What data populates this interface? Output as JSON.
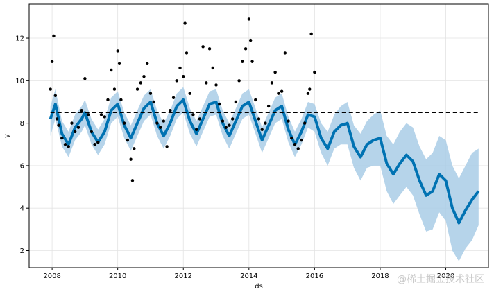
{
  "chart_data": {
    "type": "line",
    "xlabel": "ds",
    "ylabel": "y",
    "xlim": [
      2007.3,
      2021.3
    ],
    "ylim": [
      1.2,
      13.6
    ],
    "x_ticks": [
      2008,
      2010,
      2012,
      2014,
      2016,
      2018,
      2020
    ],
    "y_ticks": [
      2,
      4,
      6,
      8,
      10,
      12
    ],
    "x_tick_labels": [
      "2008",
      "2010",
      "2012",
      "2014",
      "2016",
      "2018",
      "2020"
    ],
    "y_tick_labels": [
      "2",
      "4",
      "6",
      "8",
      "10",
      "12"
    ],
    "grid": true,
    "colors": {
      "forecast": "#0072B2",
      "uncertainty": "#a9cde6",
      "observed": "#000000",
      "cap": "#000000"
    },
    "cap_line": {
      "value": 8.5,
      "style": "dashed",
      "x_range": [
        2007.95,
        2021.0
      ]
    },
    "forecast": {
      "x": [
        2007.95,
        2008.1,
        2008.3,
        2008.5,
        2008.7,
        2008.9,
        2009.0,
        2009.2,
        2009.4,
        2009.6,
        2009.8,
        2010.0,
        2010.2,
        2010.4,
        2010.6,
        2010.8,
        2011.0,
        2011.2,
        2011.4,
        2011.6,
        2011.8,
        2012.0,
        2012.2,
        2012.4,
        2012.6,
        2012.8,
        2013.0,
        2013.2,
        2013.4,
        2013.6,
        2013.8,
        2014.0,
        2014.2,
        2014.4,
        2014.6,
        2014.8,
        2015.0,
        2015.2,
        2015.4,
        2015.6,
        2015.8,
        2016.0,
        2016.2,
        2016.4,
        2016.6,
        2016.8,
        2017.0,
        2017.2,
        2017.4,
        2017.6,
        2017.8,
        2018.0,
        2018.2,
        2018.4,
        2018.6,
        2018.8,
        2019.0,
        2019.2,
        2019.4,
        2019.6,
        2019.8,
        2020.0,
        2020.2,
        2020.4,
        2020.6,
        2020.8,
        2021.0
      ],
      "yhat": [
        8.2,
        8.9,
        7.5,
        7.0,
        7.8,
        8.2,
        8.5,
        7.6,
        7.1,
        7.6,
        8.6,
        8.9,
        7.9,
        7.3,
        8.0,
        8.7,
        9.0,
        8.0,
        7.4,
        8.0,
        8.8,
        9.1,
        8.1,
        7.5,
        8.2,
        8.9,
        9.0,
        8.0,
        7.4,
        8.1,
        8.8,
        9.0,
        8.1,
        7.2,
        7.9,
        8.6,
        8.8,
        7.7,
        7.0,
        7.6,
        8.4,
        8.3,
        7.3,
        6.8,
        7.6,
        7.9,
        8.0,
        6.9,
        6.4,
        7.0,
        7.2,
        7.3,
        6.1,
        5.6,
        6.1,
        6.5,
        6.2,
        5.3,
        4.6,
        4.8,
        5.6,
        5.3,
        4.0,
        3.3,
        3.9,
        4.4,
        4.8
      ],
      "upper": [
        8.8,
        9.6,
        8.1,
        7.6,
        8.4,
        8.8,
        9.1,
        8.2,
        7.7,
        8.2,
        9.2,
        9.5,
        8.5,
        7.9,
        8.6,
        9.3,
        9.6,
        8.6,
        8.0,
        8.6,
        9.4,
        9.7,
        8.7,
        8.1,
        8.8,
        9.5,
        9.6,
        8.6,
        8.0,
        8.7,
        9.4,
        9.6,
        8.7,
        7.8,
        8.5,
        9.2,
        9.4,
        8.3,
        7.6,
        8.2,
        9.0,
        8.9,
        8.0,
        7.6,
        8.4,
        8.8,
        9.0,
        7.9,
        7.5,
        8.1,
        8.4,
        8.6,
        7.4,
        7.0,
        7.6,
        8.0,
        7.8,
        6.9,
        6.3,
        6.6,
        7.4,
        7.2,
        6.0,
        5.4,
        6.0,
        6.6,
        6.8
      ],
      "lower": [
        7.4,
        8.2,
        6.9,
        6.4,
        7.2,
        7.6,
        7.9,
        7.0,
        6.5,
        7.0,
        8.0,
        8.3,
        7.3,
        6.7,
        7.4,
        8.1,
        8.4,
        7.4,
        6.8,
        7.4,
        8.2,
        8.5,
        7.5,
        6.9,
        7.6,
        8.3,
        8.4,
        7.4,
        6.8,
        7.5,
        8.2,
        8.4,
        7.5,
        6.6,
        7.3,
        8.0,
        8.2,
        7.1,
        6.4,
        7.0,
        7.8,
        7.6,
        6.6,
        6.0,
        6.8,
        7.0,
        7.0,
        5.9,
        5.3,
        5.9,
        6.0,
        6.0,
        4.8,
        4.2,
        4.6,
        5.0,
        4.6,
        3.7,
        2.9,
        3.0,
        3.8,
        3.4,
        2.0,
        1.5,
        2.1,
        2.5,
        3.2
      ]
    },
    "observed": {
      "x": [
        2007.95,
        2008.0,
        2008.05,
        2008.1,
        2008.15,
        2008.2,
        2008.3,
        2008.4,
        2008.5,
        2008.6,
        2008.7,
        2008.8,
        2008.9,
        2009.0,
        2009.1,
        2009.2,
        2009.3,
        2009.4,
        2009.5,
        2009.6,
        2009.7,
        2009.8,
        2009.9,
        2010.0,
        2010.05,
        2010.1,
        2010.2,
        2010.3,
        2010.4,
        2010.45,
        2010.5,
        2010.6,
        2010.7,
        2010.8,
        2010.9,
        2011.0,
        2011.1,
        2011.2,
        2011.3,
        2011.4,
        2011.5,
        2011.6,
        2011.7,
        2011.8,
        2011.9,
        2012.0,
        2012.05,
        2012.1,
        2012.2,
        2012.3,
        2012.4,
        2012.5,
        2012.6,
        2012.7,
        2012.8,
        2012.9,
        2013.0,
        2013.1,
        2013.2,
        2013.3,
        2013.4,
        2013.5,
        2013.6,
        2013.7,
        2013.8,
        2013.9,
        2014.0,
        2014.05,
        2014.1,
        2014.2,
        2014.3,
        2014.4,
        2014.5,
        2014.6,
        2014.7,
        2014.8,
        2014.9,
        2015.0,
        2015.1,
        2015.2,
        2015.3,
        2015.4,
        2015.5,
        2015.6,
        2015.7,
        2015.8,
        2015.85,
        2015.9,
        2016.0
      ],
      "y": [
        9.6,
        10.9,
        12.1,
        9.3,
        8.2,
        7.9,
        7.3,
        7.0,
        6.9,
        8.0,
        7.6,
        7.8,
        8.6,
        10.1,
        8.4,
        7.6,
        7.0,
        7.1,
        8.4,
        8.3,
        9.1,
        10.5,
        9.6,
        11.4,
        10.8,
        9.1,
        8.0,
        7.2,
        6.3,
        5.3,
        6.8,
        9.6,
        9.9,
        10.2,
        10.8,
        9.4,
        9.0,
        8.0,
        7.8,
        8.1,
        6.9,
        8.6,
        9.2,
        10.0,
        10.6,
        10.2,
        12.7,
        11.3,
        9.4,
        8.4,
        7.7,
        8.2,
        11.6,
        9.9,
        11.5,
        10.6,
        9.8,
        8.9,
        8.1,
        7.8,
        7.9,
        8.2,
        9.0,
        10.0,
        10.9,
        11.5,
        12.9,
        11.9,
        10.9,
        9.1,
        8.2,
        7.7,
        8.0,
        8.8,
        9.9,
        10.4,
        9.4,
        9.5,
        11.3,
        8.1,
        7.3,
        7.0,
        6.8,
        7.2,
        8.0,
        9.4,
        9.6,
        12.2,
        10.4
      ]
    }
  },
  "watermark": "@稀土掘金技术社区"
}
